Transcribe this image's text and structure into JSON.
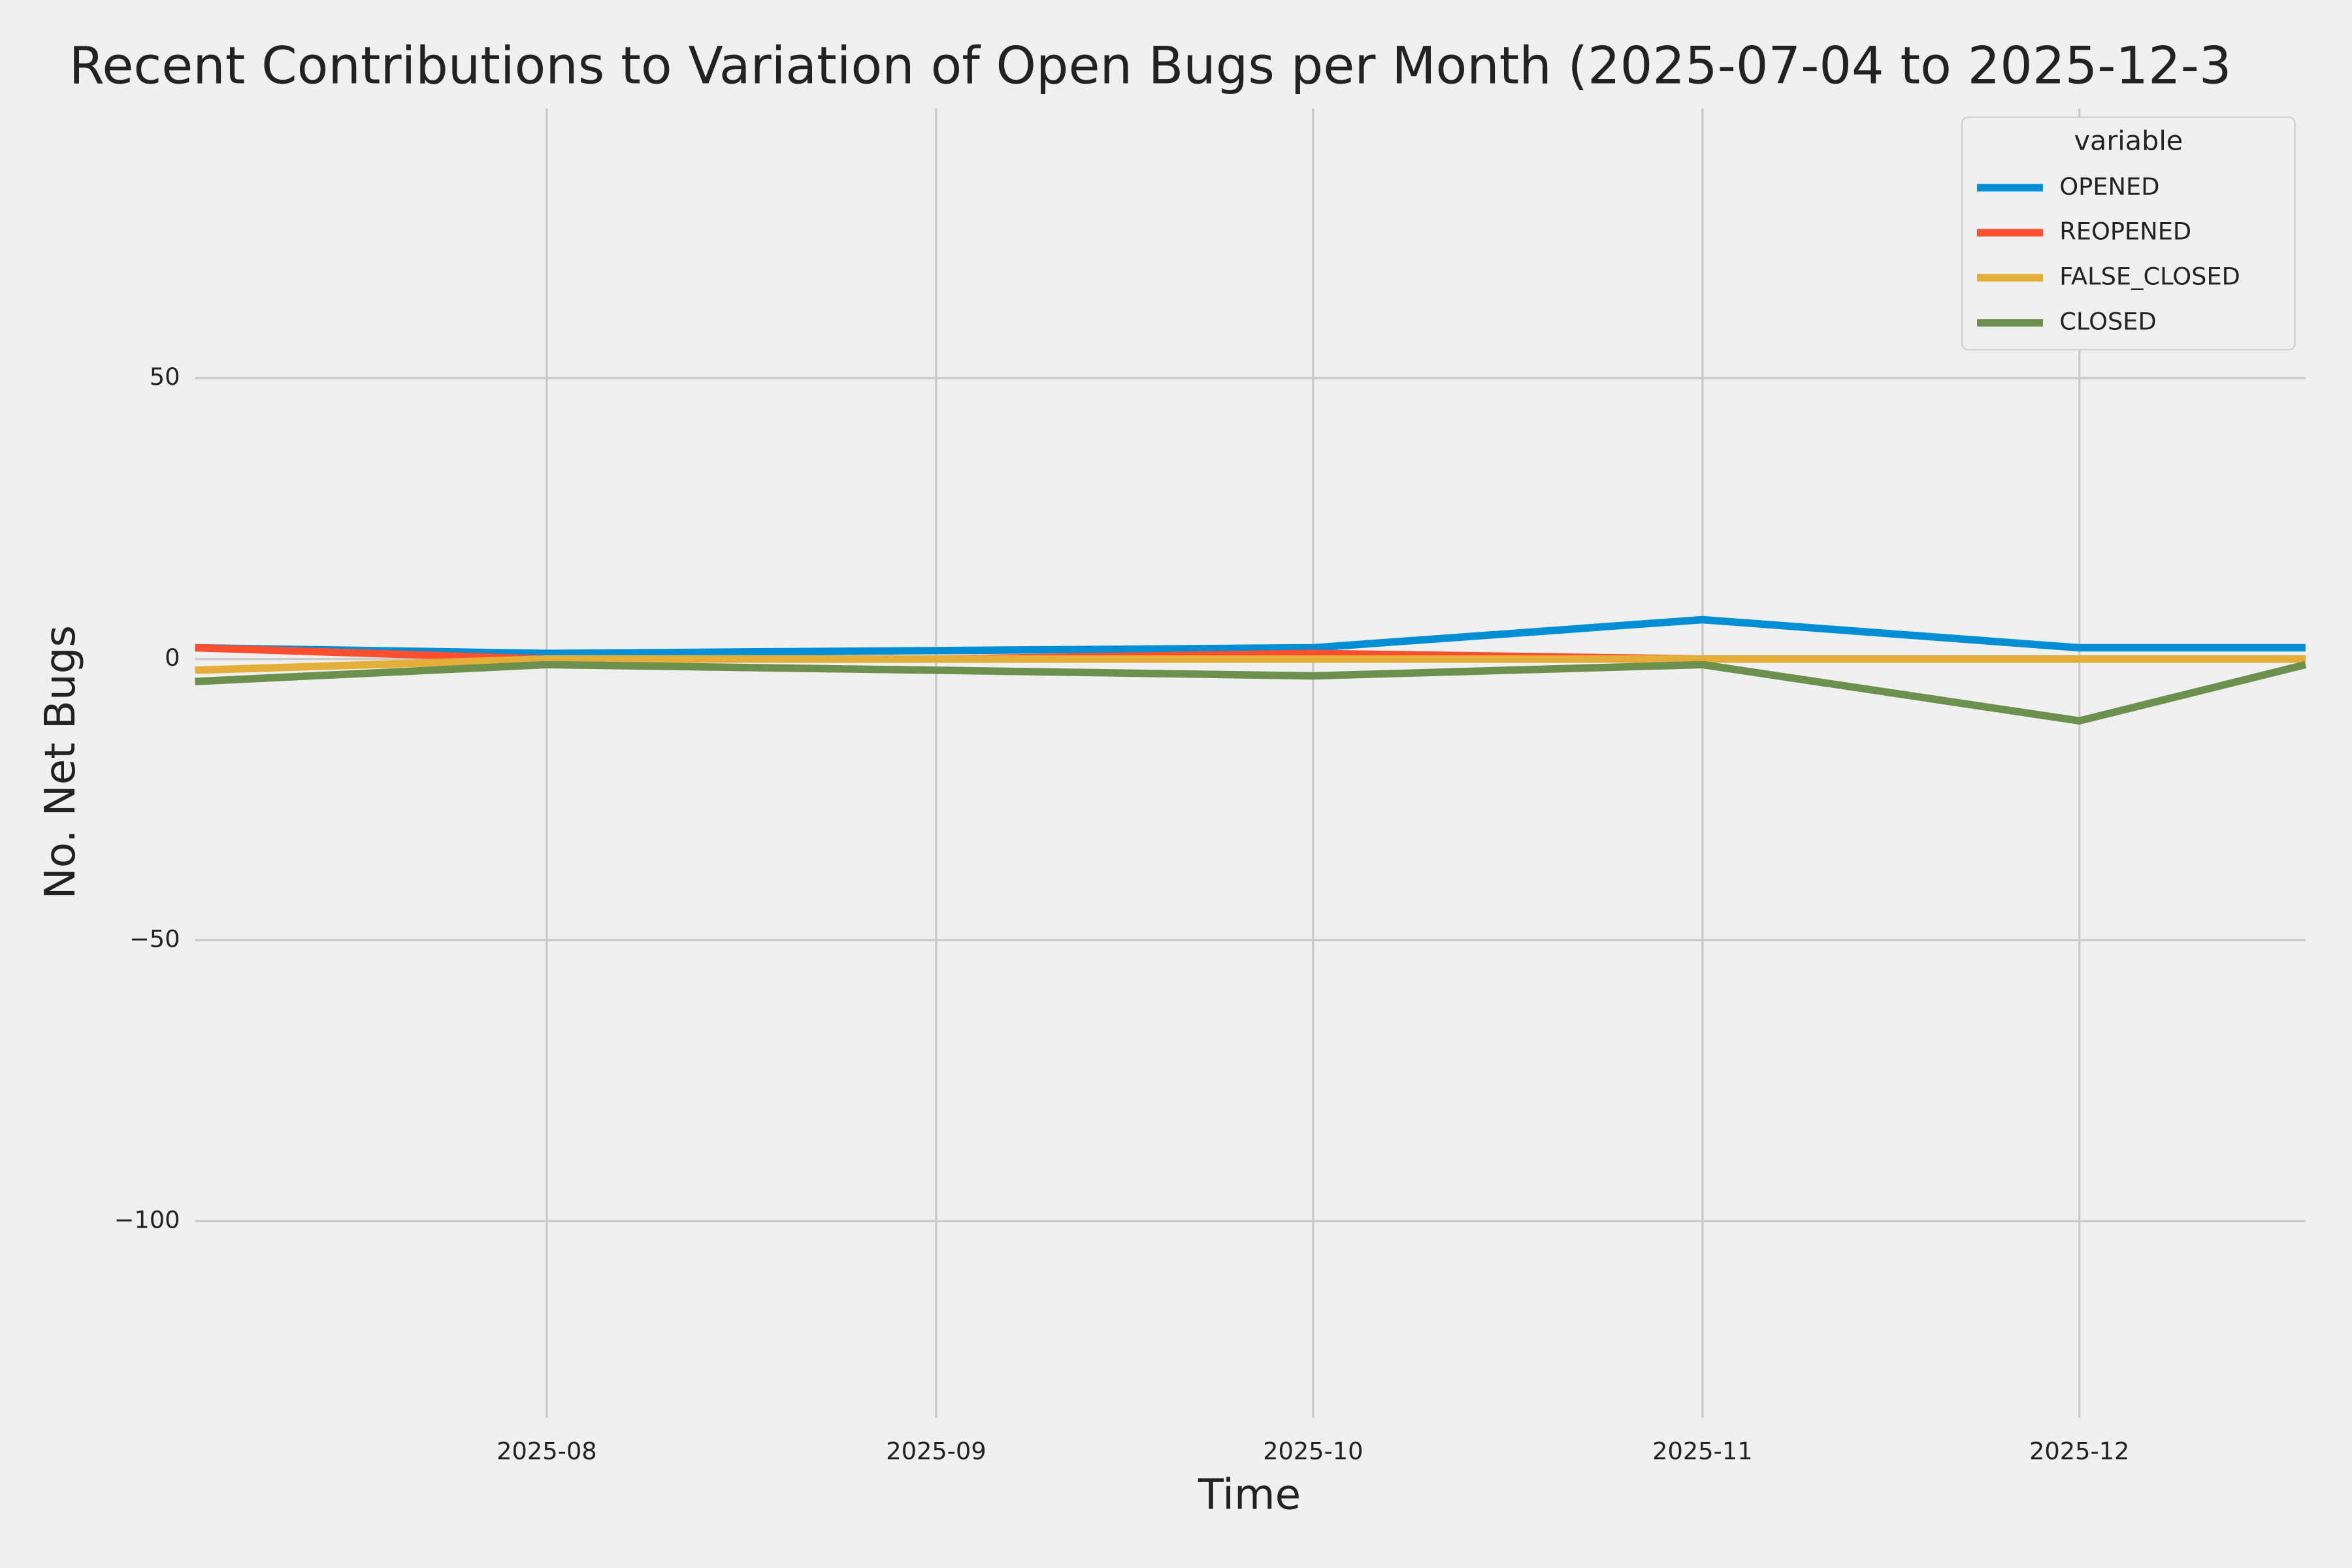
{
  "chart_data": {
    "type": "line",
    "title": "Recent Contributions to Variation of Open Bugs per Month (2025-07-04 to 2025-12-3",
    "x_label": "Time",
    "y_label": "No. Net Bugs",
    "x": [
      "2025-07-04",
      "2025-08",
      "2025-09",
      "2025-10",
      "2025-11",
      "2025-12",
      "2025-12-19"
    ],
    "series": [
      {
        "name": "OPENED",
        "color": "#008fd5",
        "values": [
          2,
          1,
          1.5,
          2,
          7,
          2,
          2
        ]
      },
      {
        "name": "REOPENED",
        "color": "#fc4f30",
        "values": [
          2,
          0,
          0,
          1,
          0,
          0,
          0
        ]
      },
      {
        "name": "FALSE_CLOSED",
        "color": "#e5ae38",
        "values": [
          -2,
          0,
          0,
          0,
          0,
          0,
          0
        ]
      },
      {
        "name": "CLOSED",
        "color": "#6d904f",
        "values": [
          -4,
          -1,
          -2,
          -3,
          -1,
          -11,
          -1
        ]
      }
    ],
    "xlim": [
      "2025-07-04",
      "2025-12-19"
    ],
    "xticks": [
      "2025-08",
      "2025-09",
      "2025-10",
      "2025-11",
      "2025-12"
    ],
    "ylim": [
      -135,
      98
    ],
    "yticks": [
      50,
      0,
      {
        "value": -50,
        "label": "−50"
      },
      {
        "value": -100,
        "label": "−100"
      }
    ],
    "grid": true,
    "legend_title": "variable",
    "legend_position": "upper right"
  }
}
